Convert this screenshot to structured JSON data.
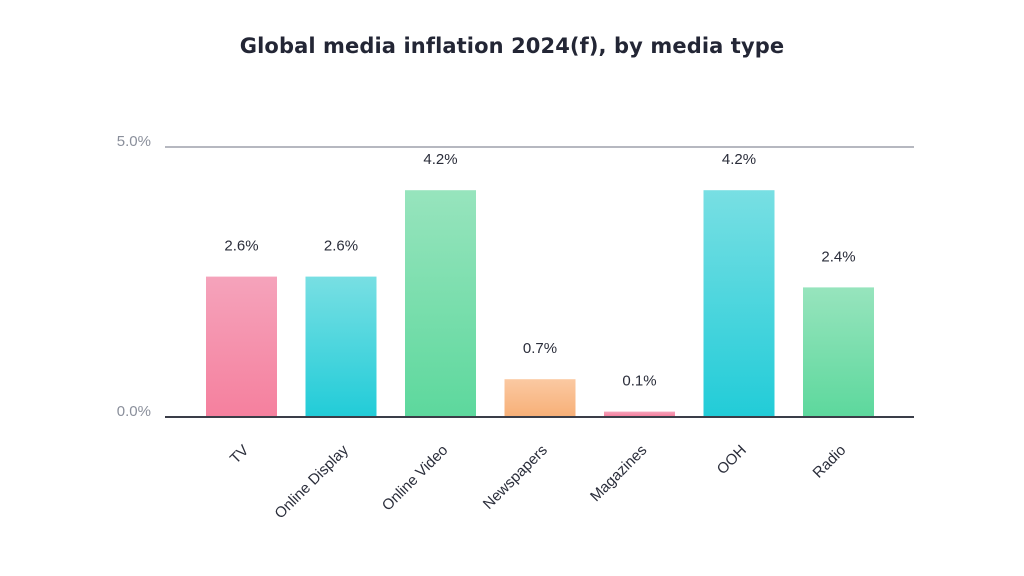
{
  "chart_data": {
    "type": "bar",
    "title": "Global media inflation 2024(f), by media type",
    "xlabel": "",
    "ylabel": "",
    "ylim": [
      0,
      5
    ],
    "yticks": [
      "0.0%",
      "5.0%"
    ],
    "grid": false,
    "categories": [
      "TV",
      "Online Display",
      "Online Video",
      "Newspapers",
      "Magazines",
      "OOH",
      "Radio"
    ],
    "values": [
      2.6,
      2.6,
      4.2,
      0.7,
      0.1,
      4.2,
      2.4
    ],
    "data_labels": [
      "2.6%",
      "2.6%",
      "4.2%",
      "0.7%",
      "0.1%",
      "4.2%",
      "2.4%"
    ],
    "bar_colors": [
      [
        "#f5a3bb",
        "#f5809e"
      ],
      [
        "#78dfe3",
        "#22ccd8"
      ],
      [
        "#97e4bd",
        "#5dd89d"
      ],
      [
        "#fbc9a2",
        "#f7b078"
      ],
      [
        "#f5a3bb",
        "#f5809e"
      ],
      [
        "#78dfe3",
        "#22ccd8"
      ],
      [
        "#97e4bd",
        "#5dd89d"
      ]
    ],
    "axis_color": "#3a3d48"
  }
}
